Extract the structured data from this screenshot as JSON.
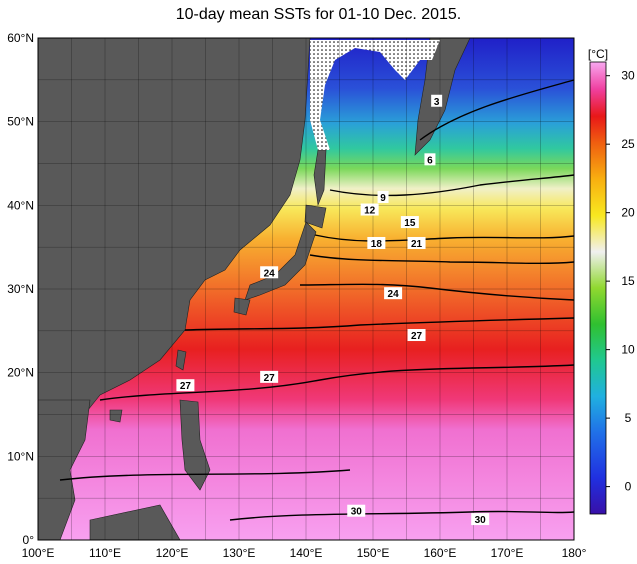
{
  "title": "10-day mean SSTs for 01-10 Dec. 2015.",
  "map": {
    "lon_range": [
      100,
      180
    ],
    "lat_range": [
      0,
      60
    ],
    "lon_ticks": [
      "100°E",
      "110°E",
      "120°E",
      "130°E",
      "140°E",
      "150°E",
      "160°E",
      "170°E",
      "180°"
    ],
    "lat_ticks": [
      "0°",
      "10°N",
      "20°N",
      "30°N",
      "40°N",
      "50°N",
      "60°N"
    ],
    "land_color": "#595959",
    "sea_ice_pattern": "white dotted"
  },
  "colorbar": {
    "unit": "[°C]",
    "range": [
      -2,
      31
    ],
    "ticks": [
      "0",
      "5",
      "10",
      "15",
      "20",
      "25",
      "30"
    ]
  },
  "contour_labels": [
    {
      "text": "3",
      "lon": 159.5,
      "lat": 52.5
    },
    {
      "text": "6",
      "lon": 158.5,
      "lat": 45.5
    },
    {
      "text": "9",
      "lon": 151.5,
      "lat": 41.0
    },
    {
      "text": "12",
      "lon": 149.5,
      "lat": 39.5
    },
    {
      "text": "15",
      "lon": 155.5,
      "lat": 38.0
    },
    {
      "text": "18",
      "lon": 150.5,
      "lat": 35.5
    },
    {
      "text": "21",
      "lon": 156.5,
      "lat": 35.5
    },
    {
      "text": "24",
      "lon": 134.5,
      "lat": 32.0
    },
    {
      "text": "24",
      "lon": 153.0,
      "lat": 29.5
    },
    {
      "text": "27",
      "lon": 156.5,
      "lat": 24.5
    },
    {
      "text": "27",
      "lon": 134.5,
      "lat": 19.5
    },
    {
      "text": "27",
      "lon": 122.0,
      "lat": 18.5
    },
    {
      "text": "30",
      "lon": 147.5,
      "lat": 3.5
    },
    {
      "text": "30",
      "lon": 166.0,
      "lat": 2.5
    }
  ]
}
